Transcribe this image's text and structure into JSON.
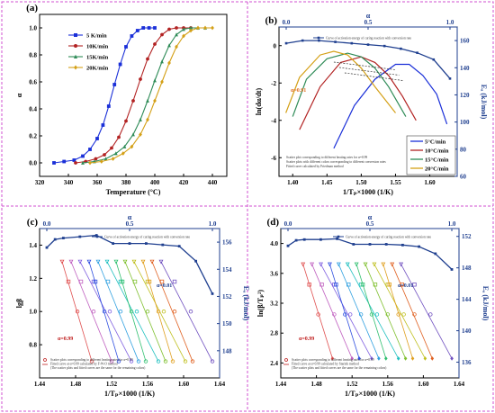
{
  "chart_data": [
    {
      "panel_label": "(a)",
      "type": "line",
      "xlabel": "Temperature (°C)",
      "ylabel": "α",
      "xlim": [
        320,
        450
      ],
      "ylim": [
        -0.1,
        1.1
      ],
      "xticks": [
        "320",
        "340",
        "360",
        "380",
        "400",
        "420",
        "440"
      ],
      "yticks": [
        "0.0",
        "0.2",
        "0.4",
        "0.6",
        "0.8",
        "1.0"
      ],
      "legend_position": "top-right",
      "series": [
        {
          "name": "5 K/min",
          "color": "#1a2fd8",
          "marker": "square",
          "x": [
            330,
            337,
            344,
            350,
            355,
            360,
            364,
            368,
            372,
            376,
            380,
            384,
            388,
            392,
            396,
            400
          ],
          "y": [
            0.0,
            0.01,
            0.02,
            0.05,
            0.1,
            0.18,
            0.28,
            0.42,
            0.58,
            0.73,
            0.86,
            0.94,
            0.98,
            1.0,
            1.0,
            1.0
          ]
        },
        {
          "name": "10K/min",
          "color": "#b22222",
          "marker": "circle",
          "x": [
            345,
            352,
            359,
            365,
            370,
            375,
            380,
            385,
            390,
            395,
            400,
            405,
            410,
            415,
            420,
            425
          ],
          "y": [
            0.0,
            0.01,
            0.03,
            0.06,
            0.11,
            0.19,
            0.31,
            0.46,
            0.62,
            0.77,
            0.88,
            0.95,
            0.99,
            1.0,
            1.0,
            1.0
          ]
        },
        {
          "name": "15K/min",
          "color": "#2e8b57",
          "marker": "triangle",
          "x": [
            350,
            358,
            366,
            373,
            379,
            385,
            390,
            395,
            400,
            405,
            410,
            415,
            420,
            425,
            430,
            435
          ],
          "y": [
            0.0,
            0.01,
            0.03,
            0.07,
            0.12,
            0.21,
            0.32,
            0.46,
            0.61,
            0.75,
            0.87,
            0.95,
            0.99,
            1.0,
            1.0,
            1.0
          ]
        },
        {
          "name": "20K/min",
          "color": "#d4a017",
          "marker": "diamond",
          "x": [
            355,
            363,
            371,
            378,
            384,
            390,
            395,
            400,
            405,
            410,
            415,
            420,
            425,
            430,
            435,
            440
          ],
          "y": [
            0.0,
            0.01,
            0.03,
            0.07,
            0.12,
            0.21,
            0.32,
            0.46,
            0.6,
            0.74,
            0.86,
            0.94,
            0.98,
            1.0,
            1.0,
            1.0
          ]
        }
      ]
    },
    {
      "panel_label": "(b)",
      "type": "line",
      "xlabel": "1/Tₚ×1000 (1/K)",
      "ylabel": "ln(dα/dt)",
      "ylabel_right": "Eₐ (kJ/mol)",
      "top_axis_label": "α",
      "xlim": [
        1.38,
        1.64
      ],
      "ylim": [
        -7,
        1
      ],
      "ylim_right": [
        60,
        170
      ],
      "xticks": [
        "1.40",
        "1.45",
        "1.50",
        "1.55",
        "1.60"
      ],
      "yticks": [
        "0",
        "-2",
        "-4",
        "-6"
      ],
      "yticks_right": [
        "60",
        "80",
        "100",
        "120",
        "140",
        "160"
      ],
      "top_ticks": [
        "0.0",
        "0.5",
        "1.0"
      ],
      "legend_position": "bottom-right",
      "ea_curve_legend": "Curve of activation energy of curing reaction with conversion rate",
      "notes": [
        "Scatter plot corresponding to different heating rates for α=0.99",
        "Scatter plots with different colors corresponding to different conversion rates",
        "Fitted curve calculated by Friedman method"
      ],
      "annotation": "α=0.91",
      "series": [
        {
          "name": "5°C/min",
          "color": "#1a2fd8",
          "x": [
            1.46,
            1.49,
            1.52,
            1.55,
            1.57,
            1.59,
            1.61,
            1.625
          ],
          "y": [
            -5.5,
            -3.2,
            -1.8,
            -1.0,
            -1.0,
            -1.6,
            -2.6,
            -4.2
          ]
        },
        {
          "name": "10°C/min",
          "color": "#b22222",
          "x": [
            1.41,
            1.44,
            1.47,
            1.5,
            1.52,
            1.54,
            1.56,
            1.58
          ],
          "y": [
            -4.5,
            -2.2,
            -0.9,
            -0.6,
            -0.9,
            -1.6,
            -2.7,
            -4.0
          ]
        },
        {
          "name": "15°C/min",
          "color": "#2e8b57",
          "x": [
            1.4,
            1.42,
            1.45,
            1.48,
            1.5,
            1.52,
            1.54,
            1.565
          ],
          "y": [
            -3.8,
            -1.8,
            -0.7,
            -0.4,
            -0.6,
            -1.2,
            -2.2,
            -3.8
          ]
        },
        {
          "name": "20°C/min",
          "color": "#d4a017",
          "x": [
            1.39,
            1.41,
            1.44,
            1.46,
            1.48,
            1.5,
            1.52,
            1.55
          ],
          "y": [
            -3.6,
            -1.7,
            -0.5,
            -0.3,
            -0.5,
            -1.2,
            -2.2,
            -3.6
          ]
        },
        {
          "name": "Ea",
          "axis": "right",
          "color": "#1f3f8f",
          "x": [
            0.0,
            0.1,
            0.2,
            0.3,
            0.4,
            0.5,
            0.6,
            0.7,
            0.8,
            0.9,
            1.0
          ],
          "y": [
            158,
            160,
            160,
            159,
            158,
            157,
            156,
            154,
            151,
            146,
            132
          ]
        }
      ]
    },
    {
      "panel_label": "(c)",
      "type": "scatter",
      "xlabel": "1/Tₚ×1000 (1/K)",
      "ylabel": "lgβ",
      "ylabel_right": "Eₐ (kJ/mol)",
      "top_axis_label": "α",
      "xlim": [
        1.44,
        1.64
      ],
      "ylim": [
        0.6,
        1.5
      ],
      "ylim_right": [
        146,
        157
      ],
      "xticks": [
        "1.44",
        "1.48",
        "1.52",
        "1.56",
        "1.60",
        "1.64"
      ],
      "yticks": [
        "0.8",
        "1.0",
        "1.2",
        "1.4"
      ],
      "yticks_right": [
        "148",
        "150",
        "152",
        "154",
        "156"
      ],
      "top_ticks": [
        "0.0",
        "0.5",
        "1.0"
      ],
      "ea_curve_legend": "Curve of activation energy of curing reaction with conversion rate",
      "notes": [
        "Scatter plots corresponding to different heating rates for α=0.99",
        "Fitted curve at α=0.99 calculated by F-W-O method",
        "(The scatter plots and fitted curves are the same for the remaining colors)"
      ],
      "annotations": [
        "α=0.01",
        "α=0.99"
      ],
      "y_levels": [
        1.3,
        1.18,
        1.0,
        0.7
      ],
      "x_start": [
        1.465,
        1.475,
        1.485,
        1.495,
        1.505,
        1.515,
        1.525,
        1.535,
        1.545,
        1.555,
        1.565,
        1.575
      ],
      "x_shift": [
        0,
        0.007,
        0.017,
        0.033
      ],
      "series": [
        {
          "name": "Ea",
          "axis": "right",
          "color": "#1f3f8f",
          "x": [
            0.0,
            0.05,
            0.1,
            0.2,
            0.3,
            0.4,
            0.5,
            0.6,
            0.7,
            0.8,
            0.9,
            1.0
          ],
          "y": [
            155.6,
            156.2,
            156.3,
            156.4,
            156.5,
            155.9,
            155.9,
            155.9,
            155.8,
            155.7,
            154.6,
            152.2
          ]
        }
      ]
    },
    {
      "panel_label": "(d)",
      "type": "scatter",
      "xlabel": "1/Tₚ×1000 (1/K)",
      "ylabel": "ln(β/Tₚ²)",
      "ylabel_right": "Eₐ (kJ/mol)",
      "top_axis_label": "α",
      "xlim": [
        1.44,
        1.64
      ],
      "ylim": [
        2.2,
        4.2
      ],
      "ylim_right": [
        134,
        153
      ],
      "xticks": [
        "1.44",
        "1.48",
        "1.52",
        "1.56",
        "1.60",
        "1.64"
      ],
      "yticks": [
        "2.4",
        "2.8",
        "3.2",
        "3.6",
        "4.0"
      ],
      "yticks_right": [
        "136",
        "140",
        "144",
        "148",
        "152"
      ],
      "top_ticks": [
        "0.0",
        "0.5",
        "1.0"
      ],
      "ea_curve_legend": "Curve of activation energy of curing reaction with conversion rate",
      "notes": [
        "Scatter plots corresponding to different heating rates for α=0.99",
        "Fitted curve at α=0.99 calculated by Starink method",
        "(The scatter plots and fitted curves are the same for the remaining colors)"
      ],
      "annotations": [
        "α=0.01",
        "α=0.99"
      ],
      "y_levels": [
        3.72,
        3.45,
        3.05,
        2.46
      ],
      "x_start": [
        1.465,
        1.475,
        1.485,
        1.495,
        1.505,
        1.515,
        1.525,
        1.535,
        1.545,
        1.555,
        1.565,
        1.575
      ],
      "x_shift": [
        0,
        0.007,
        0.017,
        0.033
      ],
      "series": [
        {
          "name": "Ea",
          "axis": "right",
          "color": "#1f3f8f",
          "x": [
            0.0,
            0.05,
            0.1,
            0.2,
            0.3,
            0.4,
            0.5,
            0.6,
            0.7,
            0.8,
            0.9,
            1.0
          ],
          "y": [
            150.8,
            151.5,
            151.6,
            151.6,
            151.7,
            151.0,
            151.0,
            151.0,
            150.9,
            150.7,
            149.8,
            147.8
          ]
        }
      ]
    }
  ],
  "palette": [
    "#e05050",
    "#c060c0",
    "#8060e0",
    "#3050e0",
    "#30a0e0",
    "#20c0c0",
    "#30c070",
    "#80c030",
    "#c0c020",
    "#e0a020",
    "#e06020",
    "#7050c0"
  ]
}
